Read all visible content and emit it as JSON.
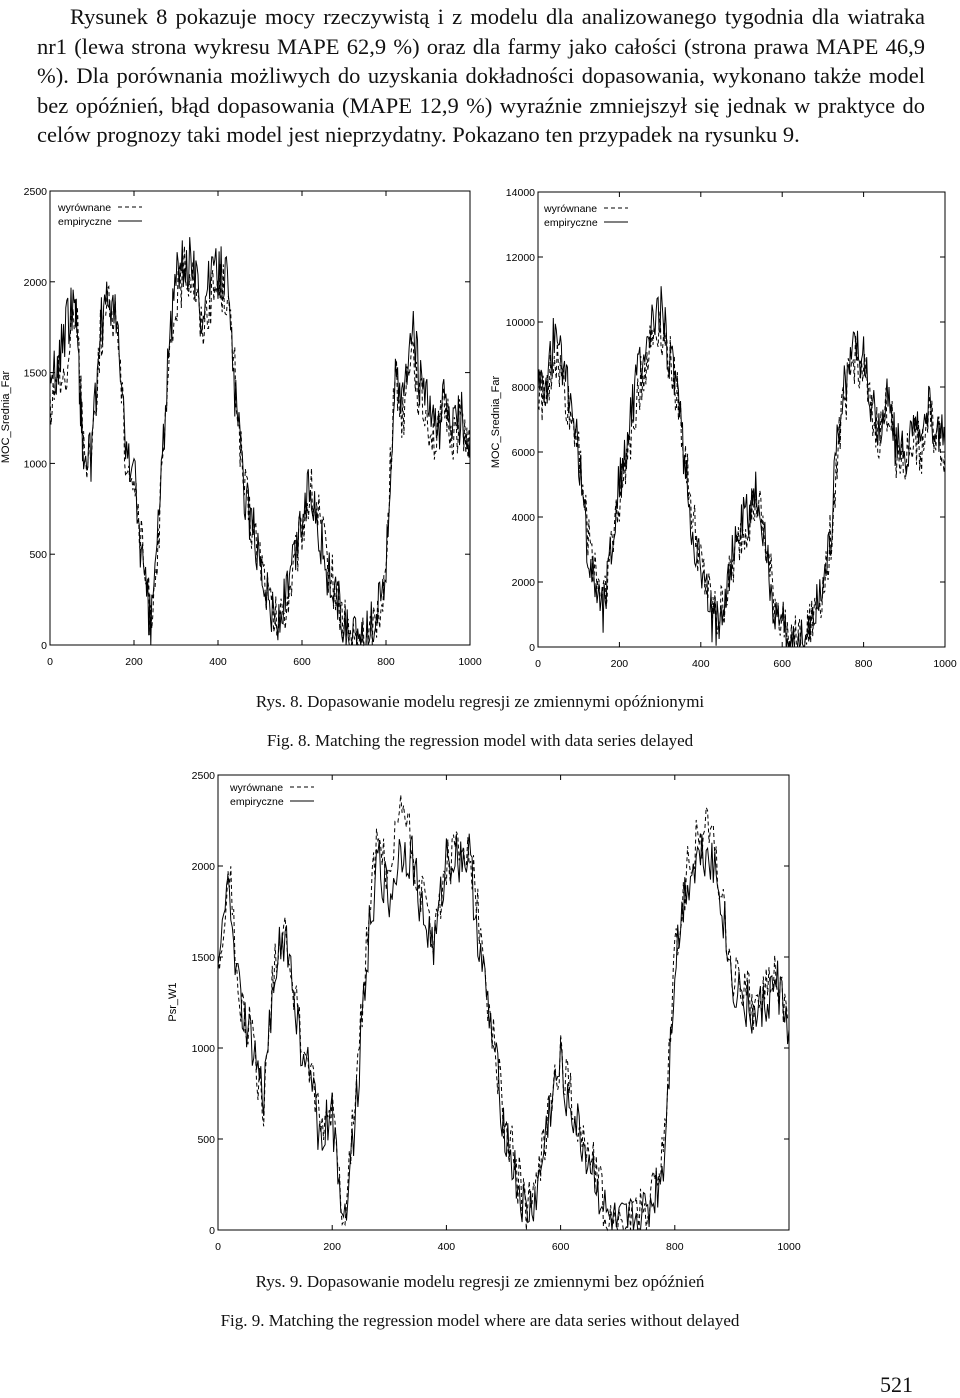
{
  "body_text": "Rysunek 8 pokazuje mocy rzeczywistą i z modelu dla analizowanego tygodnia dla wiatraka nr1 (lewa strona wykresu MAPE 62,9 %) oraz dla farmy jako całości (strona prawa MAPE 46,9 %). Dla porównania możliwych do uzyskania dokładności dopasowania, wykonano także model bez opóźnień, błąd dopasowania (MAPE 12,9 %) wyraźnie zmniejszył się jednak w praktyce do celów prognozy taki model jest nieprzydatny. Pokazano ten przypadek na rysunku 9.",
  "figure8": {
    "caption_pl": "Rys. 8. Dopasowanie modelu regresji ze zmiennymi opóźnionymi",
    "caption_en": "Fig. 8. Matching the regression model with data series delayed"
  },
  "figure9": {
    "caption_pl": "Rys. 9. Dopasowanie modelu regresji ze zmiennymi bez opóźnień",
    "caption_en": "Fig. 9. Matching the regression model where are data series without delayed"
  },
  "page_number": "521",
  "chart_data": [
    {
      "id": "fig8-left",
      "type": "line",
      "ylabel": "MOC_Srednia_Far",
      "xlim": [
        0,
        1000
      ],
      "ylim": [
        0,
        2500
      ],
      "xticks": [
        "0",
        "200",
        "400",
        "600",
        "800",
        "1000"
      ],
      "yticks": [
        "0",
        "500",
        "1000",
        "1500",
        "2000",
        "2500"
      ],
      "legend": [
        "wyrównane",
        "empiryczne"
      ],
      "series": [
        {
          "name": "wyrównane",
          "style": "dashed",
          "x": [
            0,
            20,
            40,
            60,
            70,
            80,
            100,
            120,
            140,
            160,
            180,
            200,
            220,
            240,
            260,
            280,
            300,
            320,
            340,
            360,
            380,
            400,
            420,
            440,
            460,
            480,
            500,
            520,
            540,
            560,
            580,
            600,
            620,
            640,
            660,
            680,
            700,
            720,
            740,
            760,
            780,
            800,
            820,
            840,
            860,
            880,
            900,
            920,
            940,
            960,
            980,
            1000
          ],
          "y": [
            1350,
            1450,
            1500,
            1900,
            1600,
            1050,
            1100,
            1700,
            1850,
            1800,
            1050,
            900,
            500,
            150,
            650,
            1400,
            1900,
            2050,
            2050,
            1750,
            1900,
            2000,
            1950,
            1500,
            900,
            650,
            500,
            250,
            100,
            200,
            400,
            650,
            850,
            700,
            450,
            300,
            120,
            20,
            20,
            30,
            180,
            380,
            1500,
            1250,
            1700,
            1350,
            1250,
            1100,
            1300,
            1150,
            1250,
            1100
          ]
        },
        {
          "name": "empiryczne",
          "style": "solid",
          "x": [
            0,
            20,
            40,
            60,
            70,
            80,
            100,
            120,
            140,
            160,
            180,
            200,
            220,
            240,
            260,
            280,
            300,
            320,
            340,
            360,
            380,
            400,
            420,
            440,
            460,
            480,
            500,
            520,
            540,
            560,
            580,
            600,
            620,
            640,
            660,
            680,
            700,
            720,
            740,
            760,
            780,
            800,
            820,
            840,
            860,
            880,
            900,
            920,
            940,
            960,
            980,
            1000
          ],
          "y": [
            1450,
            1550,
            1750,
            1950,
            1450,
            1000,
            1050,
            1750,
            1950,
            1750,
            1100,
            950,
            450,
            100,
            750,
            1500,
            2050,
            2100,
            2100,
            1850,
            2000,
            2050,
            2050,
            1400,
            900,
            650,
            500,
            250,
            100,
            250,
            450,
            700,
            900,
            650,
            400,
            280,
            80,
            0,
            30,
            60,
            220,
            400,
            1450,
            1300,
            1800,
            1450,
            1300,
            1150,
            1350,
            1200,
            1250,
            1150
          ]
        }
      ]
    },
    {
      "id": "fig8-right",
      "type": "line",
      "ylabel": "MOC_Srednia_Far",
      "xlim": [
        0,
        1000
      ],
      "ylim": [
        0,
        14000
      ],
      "xticks": [
        "0",
        "200",
        "400",
        "600",
        "800",
        "1000"
      ],
      "yticks": [
        "0",
        "2000",
        "4000",
        "6000",
        "8000",
        "10000",
        "12000",
        "14000"
      ],
      "legend": [
        "wyrównane",
        "empiryczne"
      ],
      "series": [
        {
          "name": "wyrównane",
          "style": "dashed",
          "x": [
            0,
            20,
            40,
            60,
            80,
            100,
            120,
            140,
            160,
            180,
            200,
            220,
            240,
            260,
            280,
            300,
            320,
            340,
            360,
            380,
            400,
            420,
            440,
            460,
            480,
            500,
            520,
            540,
            560,
            580,
            600,
            620,
            640,
            660,
            680,
            700,
            720,
            740,
            760,
            780,
            800,
            820,
            840,
            860,
            880,
            900,
            920,
            940,
            960,
            980,
            1000
          ],
          "y": [
            8000,
            7500,
            9000,
            8200,
            7000,
            6500,
            3500,
            2500,
            1500,
            3000,
            4500,
            6000,
            7500,
            8500,
            9500,
            10000,
            9000,
            8000,
            6000,
            4000,
            2500,
            1500,
            800,
            1500,
            2500,
            3500,
            4000,
            4500,
            3000,
            1500,
            800,
            200,
            100,
            300,
            1000,
            1800,
            3500,
            6500,
            8000,
            9000,
            8500,
            7000,
            6500,
            7500,
            6000,
            5500,
            6500,
            6000,
            7000,
            6500,
            6000
          ]
        },
        {
          "name": "empiryczne",
          "style": "solid",
          "x": [
            0,
            20,
            40,
            60,
            80,
            100,
            120,
            140,
            160,
            180,
            200,
            220,
            240,
            260,
            280,
            300,
            320,
            340,
            360,
            380,
            400,
            420,
            440,
            460,
            480,
            500,
            520,
            540,
            560,
            580,
            600,
            620,
            640,
            660,
            680,
            700,
            720,
            740,
            760,
            780,
            800,
            820,
            840,
            860,
            880,
            900,
            920,
            940,
            960,
            980,
            1000
          ],
          "y": [
            8500,
            8000,
            9500,
            8800,
            7500,
            6000,
            3000,
            2200,
            1200,
            3200,
            5000,
            6500,
            8000,
            9000,
            9800,
            10500,
            9200,
            8200,
            5500,
            3500,
            2200,
            1200,
            600,
            1800,
            2800,
            3800,
            4200,
            4800,
            2800,
            1300,
            600,
            100,
            50,
            400,
            1200,
            2000,
            3800,
            7000,
            8500,
            9500,
            8800,
            7200,
            6800,
            7800,
            6200,
            5800,
            6800,
            6200,
            7200,
            6800,
            6200
          ]
        }
      ]
    },
    {
      "id": "fig9",
      "type": "line",
      "ylabel": "Psr_W1",
      "xlim": [
        0,
        1000
      ],
      "ylim": [
        0,
        2500
      ],
      "xticks": [
        "0",
        "200",
        "400",
        "600",
        "800",
        "1000"
      ],
      "yticks": [
        "0",
        "500",
        "1000",
        "1500",
        "2000",
        "2500"
      ],
      "legend": [
        "wyrównane",
        "empiryczne"
      ],
      "series": [
        {
          "name": "wyrównane",
          "style": "dashed",
          "x": [
            0,
            20,
            40,
            60,
            80,
            100,
            120,
            140,
            160,
            180,
            200,
            220,
            240,
            260,
            280,
            300,
            320,
            340,
            360,
            380,
            400,
            420,
            440,
            460,
            480,
            500,
            520,
            540,
            560,
            580,
            600,
            620,
            640,
            660,
            680,
            700,
            720,
            740,
            760,
            780,
            800,
            820,
            840,
            860,
            880,
            900,
            920,
            940,
            960,
            980,
            1000
          ],
          "y": [
            1450,
            1950,
            1250,
            1050,
            650,
            1550,
            1650,
            1150,
            900,
            550,
            700,
            100,
            650,
            1550,
            2200,
            1850,
            2400,
            2100,
            1800,
            1600,
            2000,
            2050,
            2100,
            1600,
            1100,
            650,
            350,
            100,
            250,
            700,
            950,
            700,
            500,
            350,
            100,
            30,
            50,
            80,
            200,
            400,
            1500,
            1950,
            2150,
            2250,
            1900,
            1400,
            1350,
            1200,
            1300,
            1400,
            1150
          ]
        },
        {
          "name": "empiryczne",
          "style": "solid",
          "x": [
            0,
            20,
            40,
            60,
            80,
            100,
            120,
            140,
            160,
            180,
            200,
            220,
            240,
            260,
            280,
            300,
            320,
            340,
            360,
            380,
            400,
            420,
            440,
            460,
            480,
            500,
            520,
            540,
            560,
            580,
            600,
            620,
            640,
            660,
            680,
            700,
            720,
            740,
            760,
            780,
            800,
            820,
            840,
            860,
            880,
            900,
            920,
            940,
            960,
            980,
            1000
          ],
          "y": [
            1400,
            1900,
            1200,
            1000,
            700,
            1500,
            1600,
            1100,
            850,
            500,
            650,
            60,
            600,
            1500,
            2050,
            1800,
            2100,
            2050,
            1700,
            1550,
            2050,
            2050,
            2050,
            1500,
            1050,
            600,
            300,
            60,
            200,
            650,
            900,
            650,
            450,
            300,
            60,
            0,
            30,
            50,
            150,
            350,
            1450,
            1900,
            2050,
            2100,
            1850,
            1350,
            1300,
            1150,
            1250,
            1350,
            1100
          ]
        }
      ]
    }
  ]
}
